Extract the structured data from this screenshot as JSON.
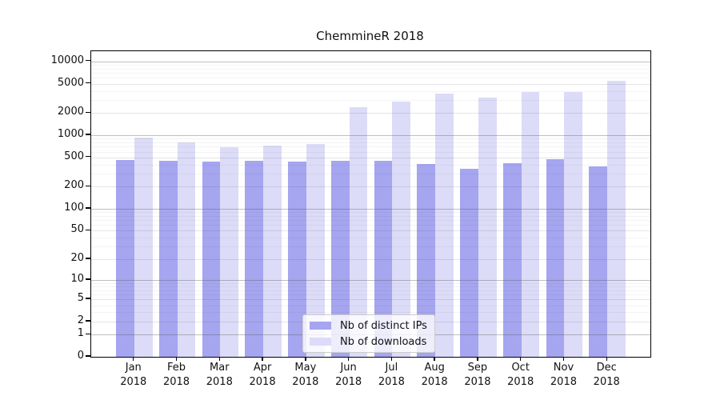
{
  "title": "ChemmineR 2018",
  "chart_data": {
    "type": "bar",
    "title": "ChemmineR 2018",
    "categories": [
      "Jan 2018",
      "Feb 2018",
      "Mar 2018",
      "Apr 2018",
      "May 2018",
      "Jun 2018",
      "Jul 2018",
      "Aug 2018",
      "Sep 2018",
      "Oct 2018",
      "Nov 2018",
      "Dec 2018"
    ],
    "months": [
      "Jan",
      "Feb",
      "Mar",
      "Apr",
      "May",
      "Jun",
      "Jul",
      "Aug",
      "Sep",
      "Oct",
      "Nov",
      "Dec"
    ],
    "year": "2018",
    "series": [
      {
        "name": "Nb of distinct IPs",
        "color": "#a5a5f0",
        "values": [
          460,
          448,
          440,
          448,
          443,
          455,
          450,
          408,
          352,
          418,
          478,
          380
        ]
      },
      {
        "name": "Nb of downloads",
        "color": "#dcdcf8",
        "values": [
          920,
          810,
          690,
          725,
          770,
          2380,
          2840,
          3640,
          3240,
          3885,
          3830,
          5470
        ]
      }
    ],
    "yscale": "log10(value+1)",
    "yticks": [
      0,
      1,
      2,
      5,
      10,
      20,
      50,
      100,
      200,
      500,
      1000,
      2000,
      5000,
      10000
    ],
    "ytick_labels": [
      "0",
      "1",
      "2",
      "5",
      "10",
      "20",
      "50",
      "100",
      "200",
      "500",
      "1000",
      "2000",
      "5000",
      "10000"
    ],
    "ylim": [
      0,
      13800
    ],
    "grid": true,
    "legend_position": "lower center",
    "xlabel": "",
    "ylabel": ""
  }
}
